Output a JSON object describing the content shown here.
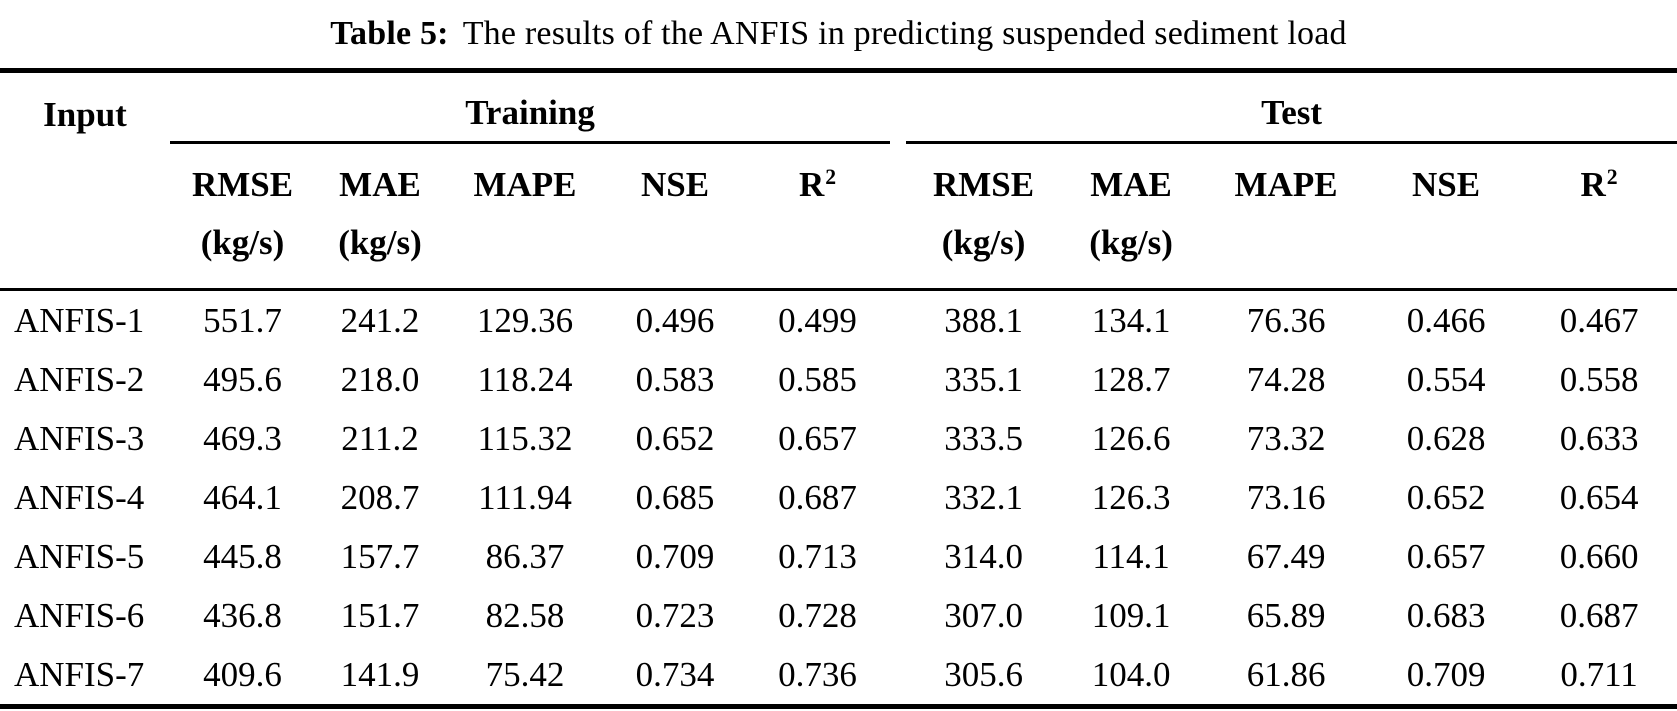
{
  "title": {
    "label": "Table 5:",
    "text": "The results of the ANFIS in predicting suspended sediment load"
  },
  "table": {
    "input_header": "Input",
    "groups": [
      {
        "label": "Training",
        "columns": [
          {
            "line1": "RMSE",
            "line2": "(kg/s)"
          },
          {
            "line1": "MAE",
            "line2": "(kg/s)"
          },
          {
            "line1": "MAPE",
            "line2": ""
          },
          {
            "line1": "NSE",
            "line2": ""
          },
          {
            "line1": "R",
            "sup": "2",
            "line2": ""
          }
        ]
      },
      {
        "label": "Test",
        "columns": [
          {
            "line1": "RMSE",
            "line2": "(kg/s)"
          },
          {
            "line1": "MAE",
            "line2": "(kg/s)"
          },
          {
            "line1": "MAPE",
            "line2": ""
          },
          {
            "line1": "NSE",
            "line2": ""
          },
          {
            "line1": "R",
            "sup": "2",
            "line2": ""
          }
        ]
      }
    ],
    "rows": [
      {
        "input": "ANFIS-1",
        "training": [
          "551.7",
          "241.2",
          "129.36",
          "0.496",
          "0.499"
        ],
        "test": [
          "388.1",
          "134.1",
          "76.36",
          "0.466",
          "0.467"
        ]
      },
      {
        "input": "ANFIS-2",
        "training": [
          "495.6",
          "218.0",
          "118.24",
          "0.583",
          "0.585"
        ],
        "test": [
          "335.1",
          "128.7",
          "74.28",
          "0.554",
          "0.558"
        ]
      },
      {
        "input": "ANFIS-3",
        "training": [
          "469.3",
          "211.2",
          "115.32",
          "0.652",
          "0.657"
        ],
        "test": [
          "333.5",
          "126.6",
          "73.32",
          "0.628",
          "0.633"
        ]
      },
      {
        "input": "ANFIS-4",
        "training": [
          "464.1",
          "208.7",
          "111.94",
          "0.685",
          "0.687"
        ],
        "test": [
          "332.1",
          "126.3",
          "73.16",
          "0.652",
          "0.654"
        ]
      },
      {
        "input": "ANFIS-5",
        "training": [
          "445.8",
          "157.7",
          "86.37",
          "0.709",
          "0.713"
        ],
        "test": [
          "314.0",
          "114.1",
          "67.49",
          "0.657",
          "0.660"
        ]
      },
      {
        "input": "ANFIS-6",
        "training": [
          "436.8",
          "151.7",
          "82.58",
          "0.723",
          "0.728"
        ],
        "test": [
          "307.0",
          "109.1",
          "65.89",
          "0.683",
          "0.687"
        ]
      },
      {
        "input": "ANFIS-7",
        "training": [
          "409.6",
          "141.9",
          "75.42",
          "0.734",
          "0.736"
        ],
        "test": [
          "305.6",
          "104.0",
          "61.86",
          "0.709",
          "0.711"
        ]
      }
    ],
    "colors": {
      "text": "#000000",
      "background": "#ffffff",
      "rule": "#000000"
    }
  }
}
